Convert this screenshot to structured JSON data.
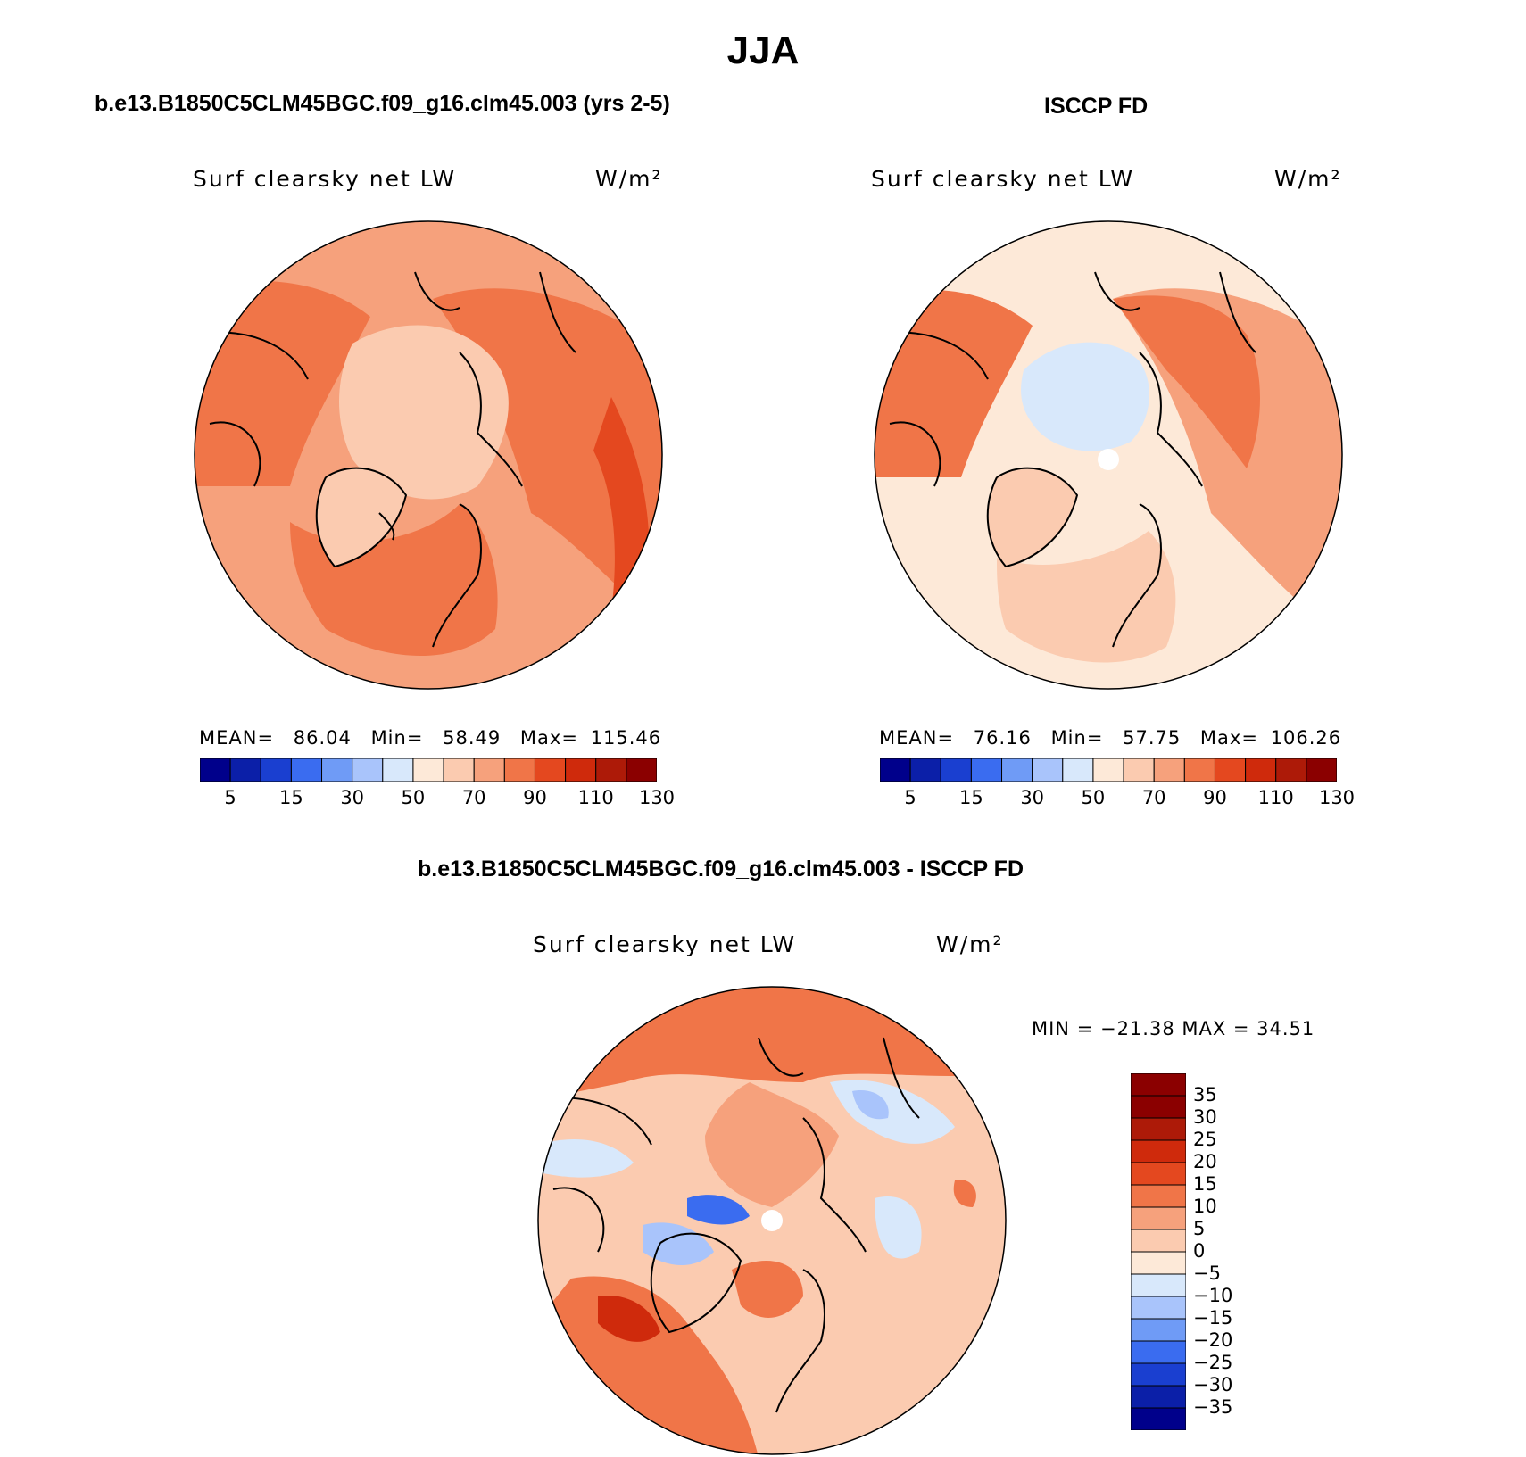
{
  "figure": {
    "season_title": "JJA",
    "panels": [
      {
        "title": "b.e13.B1850C5CLM45BGC.f09_g16.clm45.003 (yrs 2-5)",
        "variable": "Surf clearsky net LW",
        "units": "W/m²",
        "stats": {
          "mean_label": "MEAN=",
          "mean": "86.04",
          "min_label": "Min=",
          "min": "58.49",
          "max_label": "Max=",
          "max": "115.46"
        }
      },
      {
        "title": "ISCCP FD",
        "variable": "Surf clearsky net LW",
        "units": "W/m²",
        "stats": {
          "mean_label": "MEAN=",
          "mean": "76.16",
          "min_label": "Min=",
          "min": "57.75",
          "max_label": "Max=",
          "max": "106.26"
        }
      },
      {
        "title": "b.e13.B1850C5CLM45BGC.f09_g16.clm45.003 - ISCCP FD",
        "variable": "Surf clearsky net LW",
        "units": "W/m²",
        "minmax": "MIN = −21.38 MAX =  34.51"
      }
    ],
    "abs_colorbar": {
      "ticks": [
        "5",
        "15",
        "30",
        "50",
        "70",
        "90",
        "110",
        "130"
      ],
      "colors": [
        "#00008b",
        "#0b1fa8",
        "#1a3fd0",
        "#3a6cf0",
        "#6f9bf6",
        "#a9c4fb",
        "#d8e8fb",
        "#fde9d8",
        "#fbcbb0",
        "#f6a17c",
        "#f07548",
        "#e4481f",
        "#cf2a0c",
        "#ad1a08",
        "#8b0000"
      ]
    },
    "diff_colorbar": {
      "ticks": [
        "35",
        "30",
        "25",
        "20",
        "15",
        "10",
        "5",
        "0",
        "−5",
        "−10",
        "−15",
        "−20",
        "−25",
        "−30",
        "−35"
      ],
      "colors": [
        "#8b0000",
        "#ad1a08",
        "#cf2a0c",
        "#e4481f",
        "#f07548",
        "#f6a17c",
        "#fbcbb0",
        "#fde9d8",
        "#d8e8fb",
        "#a9c4fb",
        "#6f9bf6",
        "#3a6cf0",
        "#1a3fd0",
        "#0b1fa8",
        "#00008b"
      ]
    },
    "map_colors": {
      "model": {
        "ocean_pacific": "#f07548",
        "ocean_atlantic": "#f07548",
        "land_low": "#f6a17c",
        "arctic": "#fbcbb0",
        "greenland": "#fbcbb0",
        "hot": "#e4481f"
      },
      "obs": {
        "ocean_pacific": "#f6a17c",
        "ocean_atlantic": "#f07548",
        "land_low": "#fde9d8",
        "arctic": "#d8e8fb",
        "greenland": "#fbcbb0",
        "hot": "#e4481f"
      },
      "diff": {
        "base": "#fbcbb0",
        "warm": "#f07548",
        "hot": "#cf2a0c",
        "cool": "#d8e8fb",
        "cold": "#a9c4fb",
        "coldest": "#3a6cf0",
        "neutral": "#fde9d8"
      }
    }
  }
}
